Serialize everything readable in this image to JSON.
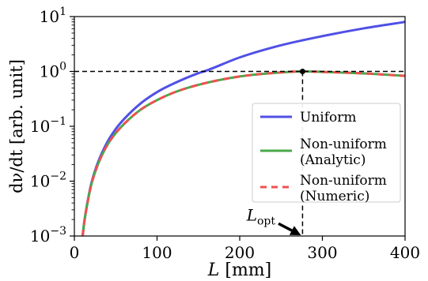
{
  "chart_data": {
    "type": "line",
    "xlabel_var": "L",
    "xlabel_unit": "[mm]",
    "ylabel": "dν/dt [arb. unit]",
    "xlim": [
      0,
      400
    ],
    "ylim": [
      0.001,
      10
    ],
    "yscale": "log",
    "grid": false,
    "legend_position": "center-right",
    "x_ticks": [
      0,
      100,
      200,
      300,
      400
    ],
    "x_tick_labels": [
      "0",
      "100",
      "200",
      "300",
      "400"
    ],
    "y_ticks": [
      0.001,
      0.01,
      0.1,
      1,
      10
    ],
    "y_tick_labels": [
      {
        "base": "10",
        "exp": "−3"
      },
      {
        "base": "10",
        "exp": "−2"
      },
      {
        "base": "10",
        "exp": "−1"
      },
      {
        "base": "10",
        "exp": "0"
      },
      {
        "base": "10",
        "exp": "1"
      }
    ],
    "series": [
      {
        "name": "Uniform",
        "color": "#5050e6",
        "style": "solid",
        "x": [
          10,
          12,
          15,
          20,
          25,
          30,
          40,
          50,
          60,
          80,
          100,
          120,
          150,
          160,
          200,
          250,
          300,
          350,
          400
        ],
        "y": [
          0.001,
          0.0018,
          0.0035,
          0.0085,
          0.0155,
          0.025,
          0.052,
          0.089,
          0.135,
          0.26,
          0.42,
          0.6,
          0.93,
          1.04,
          1.8,
          3.0,
          4.4,
          6.1,
          8.0
        ]
      },
      {
        "name": "Non-uniform\n(Analytic)",
        "color": "#4aa84a",
        "style": "solid",
        "x": [
          10,
          12,
          15,
          20,
          25,
          30,
          40,
          50,
          60,
          80,
          100,
          120,
          150,
          200,
          250,
          276,
          300,
          350,
          400
        ],
        "y": [
          0.001,
          0.0018,
          0.0034,
          0.0081,
          0.0145,
          0.023,
          0.046,
          0.075,
          0.11,
          0.2,
          0.3,
          0.41,
          0.57,
          0.81,
          0.96,
          1.0,
          0.98,
          0.92,
          0.83
        ]
      },
      {
        "name": "Non-uniform\n(Numeric)",
        "color": "#f05050",
        "style": "dashed",
        "x": [
          10,
          12,
          15,
          20,
          25,
          30,
          40,
          50,
          60,
          80,
          100,
          120,
          150,
          200,
          250,
          276,
          300,
          350,
          400
        ],
        "y": [
          0.001,
          0.0018,
          0.0034,
          0.0081,
          0.0145,
          0.023,
          0.046,
          0.075,
          0.11,
          0.2,
          0.3,
          0.41,
          0.57,
          0.81,
          0.96,
          1.0,
          0.98,
          0.92,
          0.83
        ]
      }
    ],
    "reference_lines": {
      "horizontal_y": 1,
      "vertical_x": 276,
      "color": "#000000",
      "style": "dashed"
    },
    "optimum_point": {
      "x": 276,
      "y": 1
    },
    "annotation": {
      "symbol": "L",
      "subscript": "opt",
      "points_to_x": 276,
      "points_to_y": 0.001,
      "label_x": 245,
      "label_y": 0.0018
    }
  }
}
